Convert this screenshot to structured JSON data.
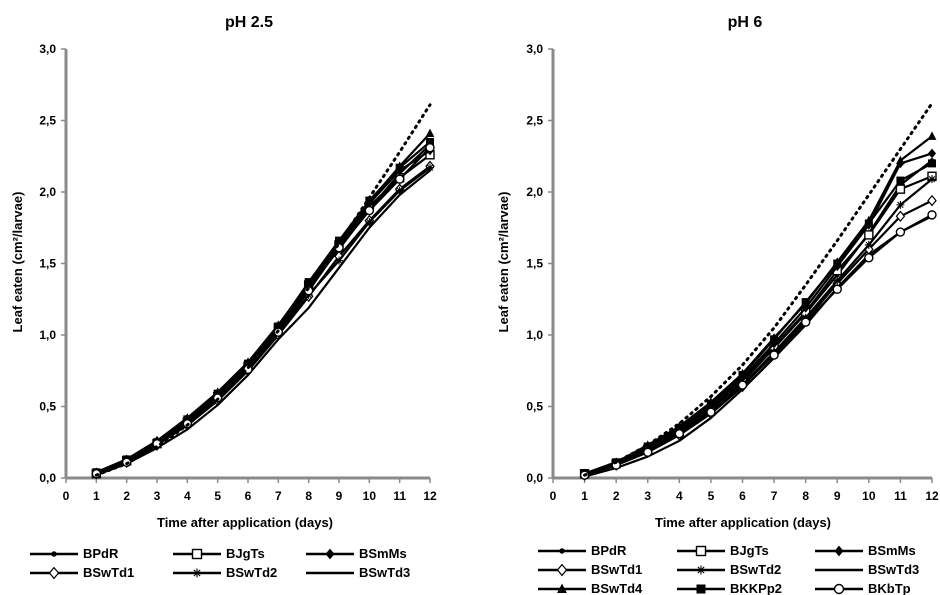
{
  "chart_data": [
    {
      "type": "line",
      "title": "pH 2.5",
      "xlabel": "Time after application (days)",
      "ylabel": "Leaf eaten (cm²/larvae)",
      "xlim": [
        0,
        12
      ],
      "ylim": [
        0,
        3
      ],
      "x_ticks": [
        0,
        1,
        2,
        3,
        4,
        5,
        6,
        7,
        8,
        9,
        10,
        11,
        12
      ],
      "y_ticks": [
        "0,0",
        "0,5",
        "1,0",
        "1,5",
        "2,0",
        "2,5",
        "3,0"
      ],
      "x": [
        1,
        2,
        3,
        4,
        5,
        6,
        7,
        8,
        9,
        10,
        11,
        12
      ],
      "grid": false,
      "legend_position": "bottom",
      "series": [
        {
          "name": "BPdR",
          "marker": "dot",
          "values": [
            0.03,
            0.12,
            0.25,
            0.4,
            0.57,
            0.79,
            1.04,
            1.33,
            1.6,
            1.88,
            2.13,
            2.33
          ]
        },
        {
          "name": "BJgTs",
          "marker": "open-square",
          "values": [
            0.03,
            0.12,
            0.24,
            0.39,
            0.57,
            0.78,
            1.05,
            1.35,
            1.63,
            1.9,
            2.1,
            2.26
          ]
        },
        {
          "name": "BSmMs",
          "marker": "filled-diamond",
          "values": [
            0.04,
            0.13,
            0.26,
            0.41,
            0.59,
            0.8,
            1.05,
            1.34,
            1.65,
            1.92,
            2.15,
            2.29
          ]
        },
        {
          "name": "BSwTd1",
          "marker": "open-diamond",
          "values": [
            0.03,
            0.11,
            0.23,
            0.37,
            0.54,
            0.75,
            1.0,
            1.27,
            1.55,
            1.8,
            2.02,
            2.18
          ]
        },
        {
          "name": "BSwTd2",
          "marker": "asterisk",
          "values": [
            0.03,
            0.12,
            0.24,
            0.38,
            0.55,
            0.76,
            1.01,
            1.28,
            1.52,
            1.79,
            2.01,
            2.17
          ]
        },
        {
          "name": "BSwTd3",
          "marker": "none",
          "values": [
            0.02,
            0.1,
            0.21,
            0.34,
            0.51,
            0.72,
            0.97,
            1.19,
            1.47,
            1.75,
            1.98,
            2.15
          ]
        },
        {
          "name": "",
          "marker": "filled-triangle",
          "values": [
            0.03,
            0.13,
            0.26,
            0.42,
            0.6,
            0.81,
            1.07,
            1.36,
            1.64,
            1.93,
            2.18,
            2.41
          ]
        },
        {
          "name": "",
          "marker": "filled-square",
          "values": [
            0.04,
            0.13,
            0.25,
            0.41,
            0.59,
            0.8,
            1.06,
            1.37,
            1.66,
            1.94,
            2.17,
            2.35
          ]
        },
        {
          "name": "",
          "marker": "open-circle",
          "values": [
            0.03,
            0.11,
            0.24,
            0.38,
            0.56,
            0.76,
            1.02,
            1.31,
            1.61,
            1.87,
            2.09,
            2.31
          ]
        },
        {
          "name": "",
          "marker": "dotted",
          "values": [
            0.02,
            0.1,
            0.22,
            0.37,
            0.55,
            0.77,
            1.03,
            1.33,
            1.64,
            1.96,
            2.28,
            2.61
          ]
        }
      ]
    },
    {
      "type": "line",
      "title": "pH 6",
      "xlabel": "Time after application (days)",
      "ylabel": "Leaf  eaten (cm²/larvae)",
      "xlim": [
        0,
        12
      ],
      "ylim": [
        0,
        3
      ],
      "x_ticks": [
        0,
        1,
        2,
        3,
        4,
        5,
        6,
        7,
        8,
        9,
        10,
        11,
        12
      ],
      "y_ticks": [
        "0,0",
        "0,5",
        "1,0",
        "1,5",
        "2,0",
        "2,5",
        "3,0"
      ],
      "x": [
        1,
        2,
        3,
        4,
        5,
        6,
        7,
        8,
        9,
        10,
        11,
        12
      ],
      "grid": false,
      "legend_position": "bottom",
      "series": [
        {
          "name": "BPdR",
          "marker": "dot",
          "values": [
            0.03,
            0.1,
            0.21,
            0.33,
            0.48,
            0.67,
            0.91,
            1.15,
            1.42,
            1.71,
            2.05,
            2.22
          ]
        },
        {
          "name": "BJgTs",
          "marker": "open-square",
          "values": [
            0.03,
            0.1,
            0.2,
            0.32,
            0.48,
            0.68,
            0.92,
            1.16,
            1.45,
            1.7,
            2.02,
            2.11
          ]
        },
        {
          "name": "BSmMs",
          "marker": "filled-diamond",
          "values": [
            0.03,
            0.11,
            0.22,
            0.34,
            0.5,
            0.7,
            0.94,
            1.19,
            1.48,
            1.77,
            2.2,
            2.27
          ]
        },
        {
          "name": "BSwTd1",
          "marker": "open-diamond",
          "values": [
            0.02,
            0.09,
            0.18,
            0.3,
            0.45,
            0.64,
            0.87,
            1.1,
            1.36,
            1.6,
            1.83,
            1.94
          ]
        },
        {
          "name": "BSwTd2",
          "marker": "asterisk",
          "values": [
            0.02,
            0.09,
            0.19,
            0.31,
            0.46,
            0.65,
            0.88,
            1.12,
            1.38,
            1.63,
            1.91,
            2.09
          ]
        },
        {
          "name": "BSwTd3",
          "marker": "none",
          "values": [
            0.01,
            0.07,
            0.15,
            0.26,
            0.42,
            0.62,
            0.84,
            1.07,
            1.33,
            1.56,
            1.72,
            1.83
          ]
        },
        {
          "name": "BSwTd4",
          "marker": "filled-triangle",
          "values": [
            0.03,
            0.11,
            0.23,
            0.36,
            0.53,
            0.73,
            0.98,
            1.22,
            1.51,
            1.8,
            2.22,
            2.39
          ]
        },
        {
          "name": "BKKPp2",
          "marker": "filled-square",
          "values": [
            0.03,
            0.11,
            0.22,
            0.35,
            0.52,
            0.72,
            0.97,
            1.23,
            1.5,
            1.78,
            2.08,
            2.2
          ]
        },
        {
          "name": "BKbTp",
          "marker": "open-circle",
          "values": [
            0.02,
            0.09,
            0.18,
            0.31,
            0.46,
            0.65,
            0.86,
            1.09,
            1.32,
            1.54,
            1.72,
            1.84
          ]
        },
        {
          "name": "",
          "marker": "dotted",
          "values": [
            0.02,
            0.11,
            0.23,
            0.38,
            0.57,
            0.79,
            1.05,
            1.35,
            1.66,
            1.98,
            2.3,
            2.62
          ]
        }
      ]
    }
  ]
}
